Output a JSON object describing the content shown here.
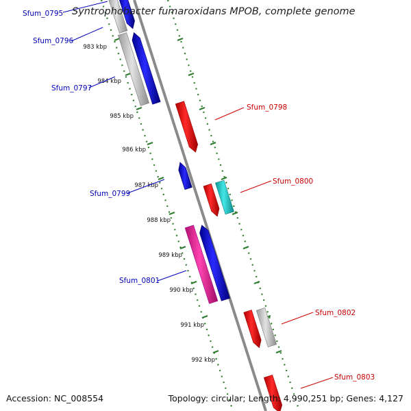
{
  "title": "Syntrophobacter fumaroxidans MPOB, complete genome",
  "footer": {
    "accession": "Accession: NC_008554",
    "summary": "Topology: circular; Length: 4,990,251 bp; Genes: 4,127"
  },
  "colors": {
    "backbone": "#888888",
    "tick_marks": "#2e7d2e",
    "forward_label": "#0000bb",
    "reverse_label": "#cc0000",
    "gene_red": "#ee0000",
    "gene_blue": "#1010dd",
    "gene_gray": "#c8c8c8",
    "gene_cyan": "#22cccc",
    "gene_pink": "#ee2299"
  },
  "kbp_labels": [
    "983 kbp",
    "984 kbp",
    "985 kbp",
    "986 kbp",
    "987 kbp",
    "988 kbp",
    "989 kbp",
    "990 kbp",
    "991 kbp",
    "992 kbp"
  ],
  "genes": [
    {
      "label": "Sfum_0795",
      "strand": "left",
      "color": "gene_blue"
    },
    {
      "label": "Sfum_0796",
      "strand": "left",
      "color": "gene_gray"
    },
    {
      "label": "Sfum_0797",
      "strand": "left",
      "color": "gene_blue"
    },
    {
      "label": "Sfum_0798",
      "strand": "right",
      "color": "gene_red"
    },
    {
      "label": "Sfum_0799",
      "strand": "left",
      "color": "gene_blue"
    },
    {
      "label": "Sfum_0800",
      "strand": "right",
      "color": "gene_red"
    },
    {
      "label": "Sfum_0801",
      "strand": "left",
      "color": "gene_pink"
    },
    {
      "label": "Sfum_0802",
      "strand": "right",
      "color": "gene_red"
    },
    {
      "label": "Sfum_0803",
      "strand": "right",
      "color": "gene_red"
    }
  ]
}
